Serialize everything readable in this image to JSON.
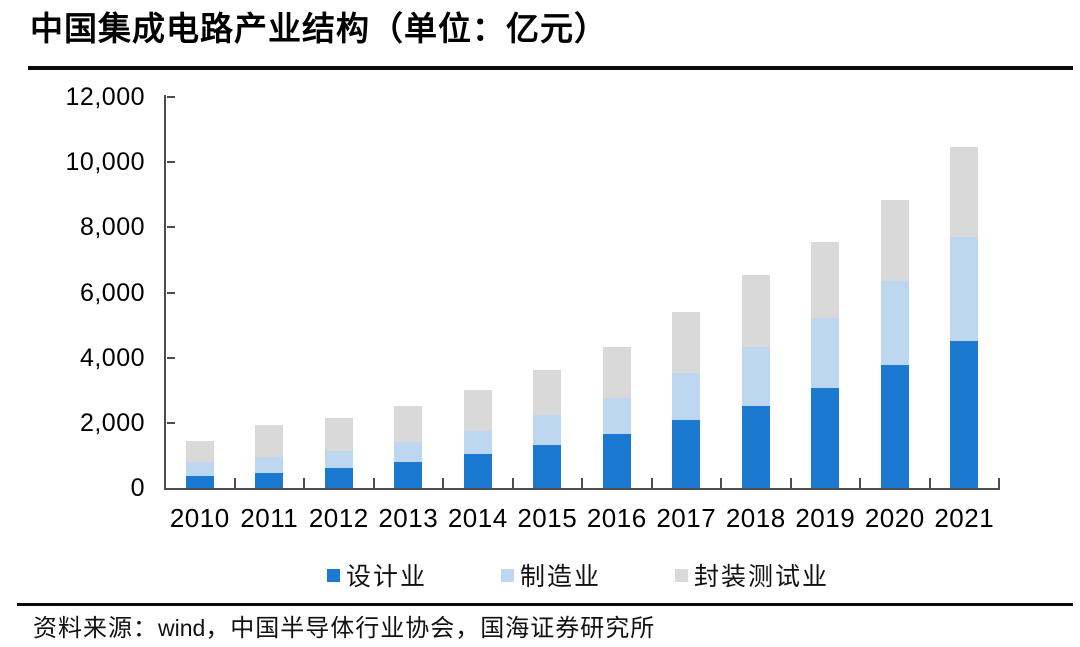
{
  "title": "中国集成电路产业结构（单位：亿元）",
  "source": {
    "prefix": "资料来源：",
    "vendor": "wind",
    "rest": "，中国半导体行业协会，国海证券研究所"
  },
  "colors": {
    "design_blue": "#1B79D2",
    "manufacturing_lightblue": "#BDD7F0",
    "packaging_gray": "#D9D9D9",
    "axis": "#4d4d4d",
    "rule_black": "#0a0a0a"
  },
  "chart_data": {
    "type": "bar",
    "stacked": true,
    "title": "中国集成电路产业结构（单位：亿元）",
    "unit": "亿元",
    "categories": [
      "2010",
      "2011",
      "2012",
      "2013",
      "2014",
      "2015",
      "2016",
      "2017",
      "2018",
      "2019",
      "2020",
      "2021"
    ],
    "series": [
      {
        "key": "design",
        "name": "设计业",
        "color": "#1B79D2",
        "values": [
          363.9,
          473.7,
          621.7,
          808.8,
          1047.4,
          1325.0,
          1644.3,
          2073.5,
          2519.3,
          3063.5,
          3778.4,
          4519.0
        ]
      },
      {
        "key": "manufacturing",
        "name": "制造业",
        "color": "#BDD7F0",
        "values": [
          447.1,
          480.2,
          503.2,
          600.9,
          712.1,
          900.8,
          1126.9,
          1448.1,
          1818.2,
          2149.1,
          2560.1,
          3176.3
        ]
      },
      {
        "key": "packaging_testing",
        "name": "封装测试业",
        "color": "#D9D9D9",
        "values": [
          629.2,
          979.8,
          1033.6,
          1098.8,
          1255.9,
          1384.0,
          1564.3,
          1889.7,
          2193.9,
          2349.7,
          2509.5,
          2763.0
        ]
      }
    ],
    "totals": [
      1440.2,
      1933.7,
      2158.5,
      2508.5,
      3015.4,
      3609.8,
      4335.5,
      5411.3,
      6531.4,
      7562.3,
      8848.0,
      10458.3
    ],
    "xlabel": "",
    "ylabel": "",
    "ylim": [
      0,
      12000
    ],
    "ytick_step": 2000,
    "ytick_labels": [
      "0",
      "2,000",
      "4,000",
      "6,000",
      "8,000",
      "10,000",
      "12,000"
    ],
    "grid": false,
    "legend_position": "bottom"
  }
}
